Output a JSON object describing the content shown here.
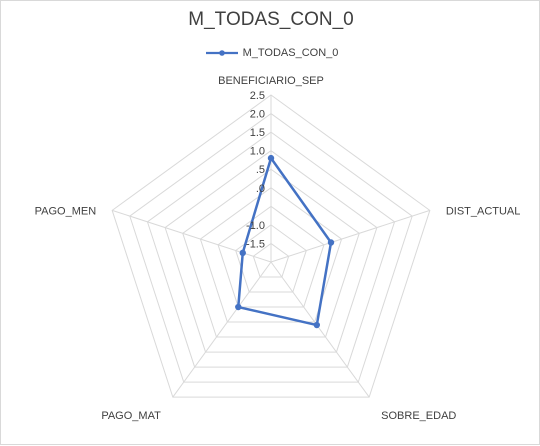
{
  "chart_data": {
    "type": "radar",
    "title": "M_TODAS_CON_0",
    "axes": [
      "BENEFICIARIO_SEP",
      "DIST_ACTUAL",
      "SOBRE_EDAD",
      "PAGO_MAT",
      "PAGO_MEN"
    ],
    "radial_ticks": [
      "-1.5",
      "-1.0",
      ".0",
      ".5",
      "1.0",
      "1.5",
      "2.0",
      "2.5"
    ],
    "rlim": [
      -2,
      2.5
    ],
    "series": [
      {
        "name": "M_TODAS_CON_0",
        "values": [
          0.8,
          -0.3,
          0.1,
          -0.5,
          -1.2
        ]
      }
    ],
    "legend_position": "top",
    "colors": {
      "series": "#4472c4",
      "grid": "#d9d9d9",
      "text": "#404040"
    }
  }
}
